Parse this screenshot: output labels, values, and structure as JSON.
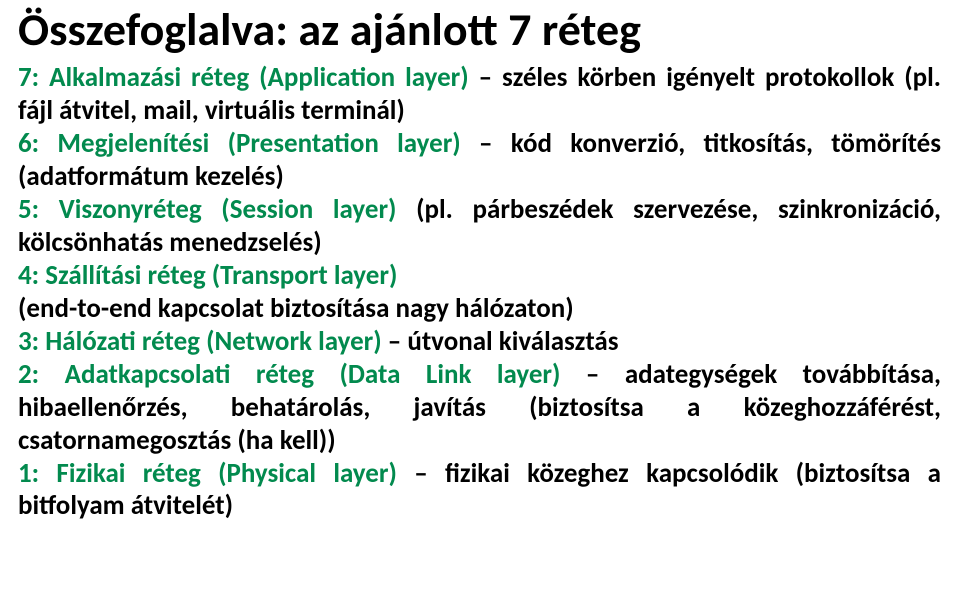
{
  "title": "Összefoglalva: az ajánlott 7 réteg",
  "layers": {
    "l7_green": "7: Alkalmazási réteg (Application layer)",
    "l7_black": " – széles körben igényelt protokollok (pl. fájl átvitel, mail, virtuális terminál)",
    "l6_green": "6: Megjelenítési (Presentation layer)",
    "l6_black": " – kód konverzió, titkosítás, tömörítés (adatformátum kezelés)",
    "l5_green": "5: Viszonyréteg (Session layer)",
    "l5_black": " (pl. párbeszédek szervezése, szinkronizáció, kölcsönhatás menedzselés)",
    "l4_green": "4: Szállítási réteg (Transport layer)",
    "l4b_black": "(end-to-end kapcsolat biztosítása nagy hálózaton)",
    "l3_green": "3: Hálózati réteg (Network layer)",
    "l3_black": " – útvonal kiválasztás",
    "l2_green": "2: Adatkapcsolati réteg (Data Link layer)",
    "l2_black": " – adategységek továbbítása, hibaellenőrzés, behatárolás, javítás (biztosítsa a közeghozzáférést, csatornamegosztás (ha kell))",
    "l1_green": "1: Fizikai réteg (Physical layer)",
    "l1_black": " – fizikai közeghez kapcsolódik (biztosítsa a bitfolyam átvitelét)"
  },
  "colors": {
    "green": "#028a4e",
    "black": "#000000",
    "bg": "#ffffff"
  }
}
